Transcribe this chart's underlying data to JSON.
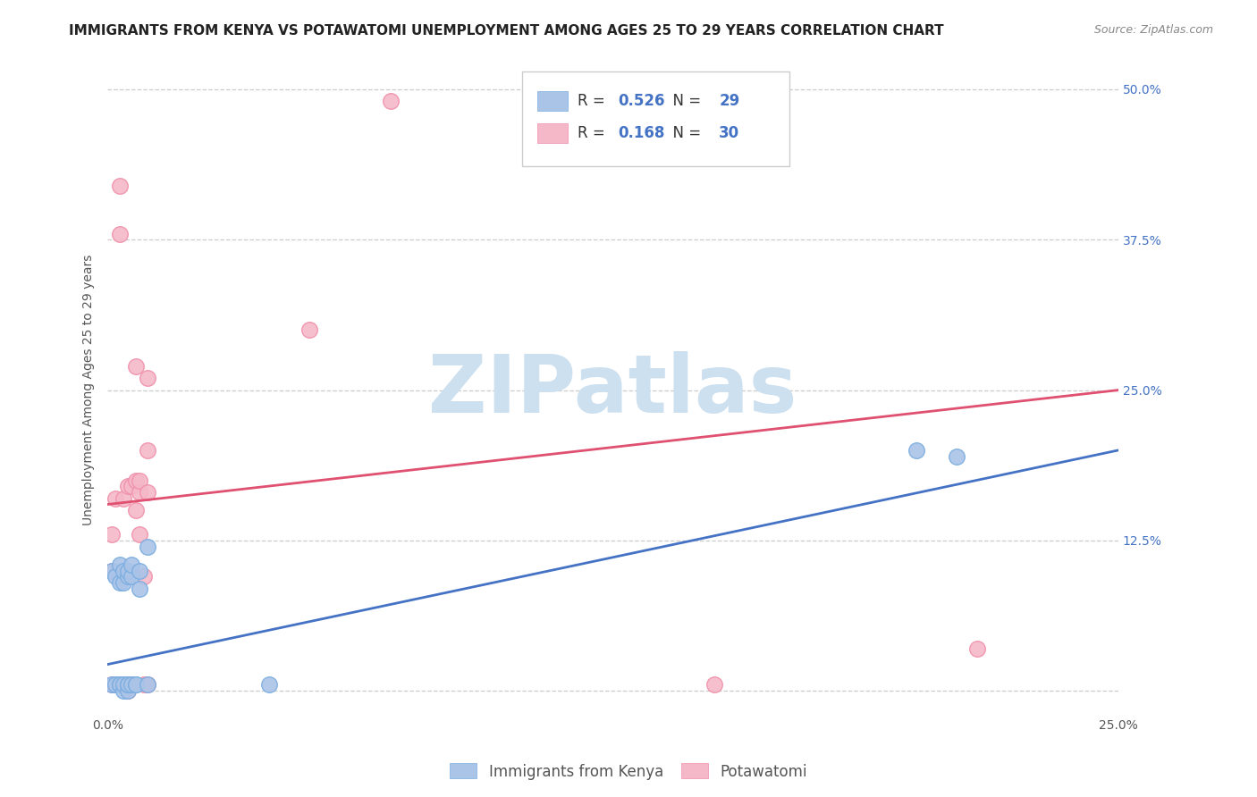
{
  "title": "IMMIGRANTS FROM KENYA VS POTAWATOMI UNEMPLOYMENT AMONG AGES 25 TO 29 YEARS CORRELATION CHART",
  "source": "Source: ZipAtlas.com",
  "ylabel": "Unemployment Among Ages 25 to 29 years",
  "xlim": [
    0.0,
    0.25
  ],
  "ylim": [
    -0.02,
    0.52
  ],
  "xticks": [
    0.0,
    0.05,
    0.1,
    0.15,
    0.2,
    0.25
  ],
  "yticks": [
    0.0,
    0.125,
    0.25,
    0.375,
    0.5
  ],
  "blue_color": "#aac4e8",
  "pink_color": "#f5b8c8",
  "blue_edge_color": "#7aade0",
  "pink_edge_color": "#f090aa",
  "blue_line_color": "#4472c4",
  "pink_line_color": "#e05070",
  "blue_R": 0.526,
  "blue_N": 29,
  "pink_R": 0.168,
  "pink_N": 30,
  "watermark": "ZIPatlas",
  "watermark_color": "#cce0f0",
  "legend_label_blue": "Immigrants from Kenya",
  "legend_label_pink": "Potawatomi",
  "blue_scatter_x": [
    0.001,
    0.001,
    0.002,
    0.002,
    0.003,
    0.003,
    0.003,
    0.003,
    0.004,
    0.004,
    0.004,
    0.004,
    0.005,
    0.005,
    0.005,
    0.005,
    0.005,
    0.006,
    0.006,
    0.006,
    0.007,
    0.007,
    0.008,
    0.008,
    0.01,
    0.01,
    0.04,
    0.2,
    0.21
  ],
  "blue_scatter_y": [
    0.005,
    0.1,
    0.005,
    0.095,
    0.005,
    0.005,
    0.09,
    0.105,
    0.0,
    0.005,
    0.09,
    0.1,
    0.0,
    0.005,
    0.005,
    0.095,
    0.1,
    0.005,
    0.095,
    0.105,
    0.005,
    0.005,
    0.085,
    0.1,
    0.12,
    0.005,
    0.005,
    0.2,
    0.195
  ],
  "pink_scatter_x": [
    0.001,
    0.001,
    0.001,
    0.002,
    0.002,
    0.003,
    0.003,
    0.004,
    0.004,
    0.005,
    0.005,
    0.005,
    0.006,
    0.006,
    0.007,
    0.007,
    0.007,
    0.008,
    0.008,
    0.008,
    0.009,
    0.009,
    0.01,
    0.01,
    0.01,
    0.01,
    0.05,
    0.07,
    0.15,
    0.215
  ],
  "pink_scatter_y": [
    0.005,
    0.1,
    0.13,
    0.005,
    0.16,
    0.38,
    0.42,
    0.005,
    0.16,
    0.0,
    0.005,
    0.17,
    0.005,
    0.17,
    0.15,
    0.175,
    0.27,
    0.13,
    0.165,
    0.175,
    0.005,
    0.095,
    0.005,
    0.165,
    0.2,
    0.26,
    0.3,
    0.49,
    0.005,
    0.035
  ],
  "background_color": "#ffffff",
  "grid_color": "#cccccc",
  "title_fontsize": 11,
  "axis_label_fontsize": 10,
  "tick_fontsize": 10,
  "legend_fontsize": 12,
  "blue_line_y0": 0.022,
  "blue_line_y1": 0.2,
  "pink_line_y0": 0.155,
  "pink_line_y1": 0.25
}
